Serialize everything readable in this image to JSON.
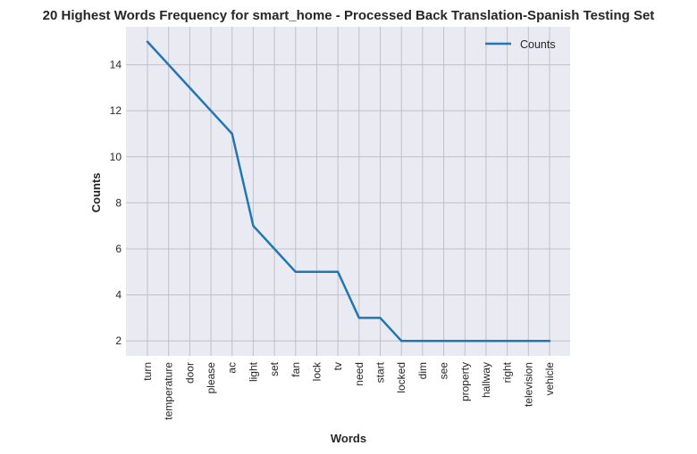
{
  "chart_data": {
    "type": "line",
    "title": "20 Highest Words Frequency for smart_home - Processed Back Translation-Spanish Testing Set",
    "xlabel": "Words",
    "ylabel": "Counts",
    "categories": [
      "turn",
      "temperature",
      "door",
      "please",
      "ac",
      "light",
      "set",
      "fan",
      "lock",
      "tv",
      "need",
      "start",
      "locked",
      "dim",
      "see",
      "property",
      "hallway",
      "right",
      "television",
      "vehicle"
    ],
    "series": [
      {
        "name": "Counts",
        "values": [
          15,
          14,
          13,
          12,
          11,
          7,
          6,
          5,
          5,
          5,
          3,
          3,
          2,
          2,
          2,
          2,
          2,
          2,
          2,
          2
        ],
        "color": "#1f77b4"
      }
    ],
    "ylim": [
      1.35,
      15.65
    ],
    "yticks": [
      2,
      4,
      6,
      8,
      10,
      12,
      14
    ],
    "grid": true,
    "legend_position": "top-right",
    "background_color": "#eaeaf2",
    "grid_color": "#c0c0c8"
  }
}
